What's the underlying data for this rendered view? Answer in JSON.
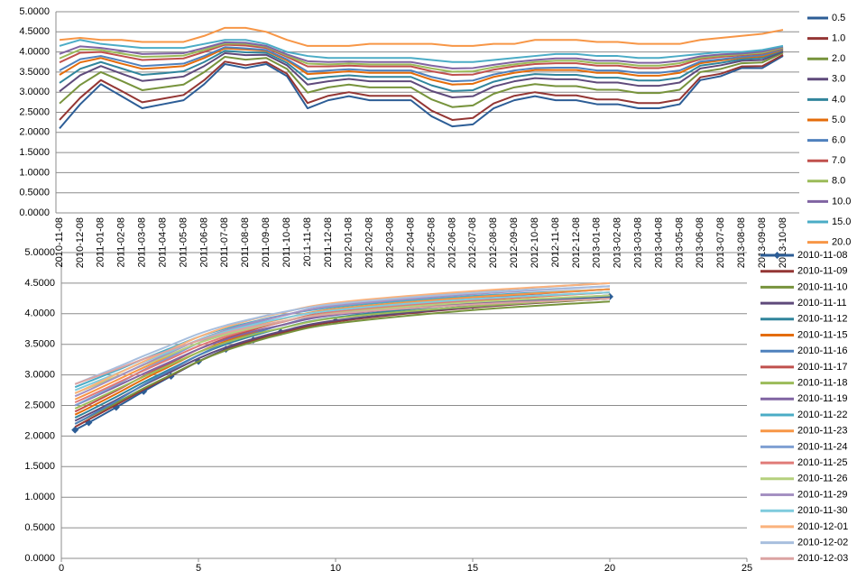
{
  "chart_data": [
    {
      "type": "line",
      "legend": "right",
      "grid": true,
      "categories": [
        "2010-11-08",
        "2010-12-08",
        "2011-01-08",
        "2011-02-08",
        "2011-03-08",
        "2011-04-08",
        "2011-05-08",
        "2011-06-08",
        "2011-07-08",
        "2011-08-08",
        "2011-09-08",
        "2011-10-08",
        "2011-11-08",
        "2011-12-08",
        "2012-01-08",
        "2012-02-08",
        "2012-03-08",
        "2012-04-08",
        "2012-05-08",
        "2012-06-08",
        "2012-07-08",
        "2012-08-08",
        "2012-09-08",
        "2012-10-08",
        "2012-11-08",
        "2012-12-08",
        "2013-01-08",
        "2013-02-08",
        "2013-03-08",
        "2013-04-08",
        "2013-05-08",
        "2013-06-08",
        "2013-07-08",
        "2013-08-08",
        "2013-09-08",
        "2013-10-08"
      ],
      "ylim": [
        0,
        5
      ],
      "yticks": [
        {
          "value": 0,
          "label": "0.0000"
        },
        {
          "value": 0.5,
          "label": "0.5000"
        },
        {
          "value": 1,
          "label": "1.0000"
        },
        {
          "value": 1.5,
          "label": "1.5000"
        },
        {
          "value": 2,
          "label": "2.0000"
        },
        {
          "value": 2.5,
          "label": "2.5000"
        },
        {
          "value": 3,
          "label": "3.0000"
        },
        {
          "value": 3.5,
          "label": "3.5000"
        },
        {
          "value": 4,
          "label": "4.0000"
        },
        {
          "value": 4.5,
          "label": "4.5000"
        },
        {
          "value": 5,
          "label": "5.0000"
        }
      ],
      "series": [
        {
          "name": "0.5",
          "color": "#2c5d96",
          "values": [
            2.1,
            2.7,
            3.2,
            2.9,
            2.6,
            2.7,
            2.8,
            3.2,
            3.7,
            3.6,
            3.7,
            3.4,
            2.6,
            2.8,
            2.9,
            2.8,
            2.8,
            2.8,
            2.4,
            2.15,
            2.2,
            2.6,
            2.8,
            2.9,
            2.8,
            2.8,
            2.7,
            2.7,
            2.6,
            2.6,
            2.7,
            3.3,
            3.4,
            3.6,
            3.6,
            3.9
          ]
        },
        {
          "name": "1.0",
          "color": "#943634",
          "values": [
            2.31,
            2.86,
            3.3,
            3.03,
            2.75,
            2.84,
            2.93,
            3.3,
            3.76,
            3.67,
            3.75,
            3.46,
            2.73,
            2.91,
            3.0,
            2.91,
            2.91,
            2.91,
            2.54,
            2.31,
            2.36,
            2.72,
            2.91,
            3.0,
            2.92,
            2.92,
            2.82,
            2.82,
            2.73,
            2.73,
            2.82,
            3.37,
            3.46,
            3.64,
            3.65,
            3.93
          ]
        },
        {
          "name": "2.0",
          "color": "#77933c",
          "values": [
            2.72,
            3.18,
            3.5,
            3.28,
            3.05,
            3.12,
            3.19,
            3.5,
            3.88,
            3.81,
            3.85,
            3.58,
            2.99,
            3.12,
            3.19,
            3.12,
            3.12,
            3.12,
            2.82,
            2.63,
            2.67,
            2.96,
            3.12,
            3.2,
            3.15,
            3.15,
            3.06,
            3.06,
            2.98,
            2.98,
            3.06,
            3.5,
            3.58,
            3.72,
            3.74,
            3.98
          ]
        },
        {
          "name": "3.0",
          "color": "#5f4a7b",
          "values": [
            3.02,
            3.42,
            3.65,
            3.46,
            3.28,
            3.33,
            3.39,
            3.65,
            3.97,
            3.92,
            3.93,
            3.67,
            3.19,
            3.27,
            3.33,
            3.27,
            3.27,
            3.27,
            3.03,
            2.87,
            2.9,
            3.14,
            3.27,
            3.35,
            3.32,
            3.32,
            3.24,
            3.24,
            3.16,
            3.16,
            3.24,
            3.59,
            3.67,
            3.78,
            3.8,
            4.01
          ]
        },
        {
          "name": "4.0",
          "color": "#31859c",
          "values": [
            3.23,
            3.58,
            3.75,
            3.59,
            3.43,
            3.47,
            3.52,
            3.75,
            4.03,
            3.99,
            3.98,
            3.73,
            3.32,
            3.38,
            3.42,
            3.38,
            3.38,
            3.38,
            3.17,
            3.03,
            3.05,
            3.26,
            3.38,
            3.45,
            3.43,
            3.43,
            3.36,
            3.36,
            3.29,
            3.29,
            3.36,
            3.66,
            3.73,
            3.82,
            3.85,
            4.04
          ]
        },
        {
          "name": "5.0",
          "color": "#e46c0a",
          "values": [
            3.43,
            3.74,
            3.85,
            3.71,
            3.58,
            3.61,
            3.65,
            3.85,
            4.09,
            4.06,
            4.03,
            3.79,
            3.45,
            3.48,
            3.52,
            3.48,
            3.48,
            3.48,
            3.31,
            3.19,
            3.21,
            3.38,
            3.48,
            3.55,
            3.55,
            3.55,
            3.48,
            3.48,
            3.41,
            3.41,
            3.48,
            3.72,
            3.79,
            3.86,
            3.89,
            4.06
          ]
        },
        {
          "name": "6.0",
          "color": "#4f81bd",
          "values": [
            3.54,
            3.82,
            3.9,
            3.78,
            3.65,
            3.68,
            3.71,
            3.9,
            4.12,
            4.09,
            4.05,
            3.82,
            3.51,
            3.54,
            3.57,
            3.54,
            3.54,
            3.54,
            3.38,
            3.27,
            3.29,
            3.44,
            3.54,
            3.6,
            3.61,
            3.61,
            3.54,
            3.54,
            3.48,
            3.48,
            3.54,
            3.76,
            3.82,
            3.88,
            3.92,
            4.08
          ]
        },
        {
          "name": "7.0",
          "color": "#c0504d",
          "values": [
            3.74,
            3.98,
            4.0,
            3.9,
            3.8,
            3.82,
            3.84,
            4.0,
            4.18,
            4.16,
            4.1,
            3.88,
            3.64,
            3.64,
            3.66,
            3.64,
            3.64,
            3.64,
            3.52,
            3.43,
            3.44,
            3.56,
            3.64,
            3.7,
            3.72,
            3.72,
            3.66,
            3.66,
            3.6,
            3.6,
            3.66,
            3.82,
            3.88,
            3.92,
            3.96,
            4.1
          ]
        },
        {
          "name": "8.0",
          "color": "#9bbb59",
          "values": [
            3.84,
            4.06,
            4.05,
            3.96,
            3.88,
            3.89,
            3.91,
            4.05,
            4.21,
            4.2,
            4.13,
            3.91,
            3.71,
            3.69,
            3.71,
            3.69,
            3.69,
            3.69,
            3.59,
            3.51,
            3.52,
            3.62,
            3.69,
            3.75,
            3.78,
            3.78,
            3.72,
            3.72,
            3.66,
            3.66,
            3.72,
            3.85,
            3.91,
            3.94,
            3.98,
            4.11
          ]
        },
        {
          "name": "10.0",
          "color": "#8064a2",
          "values": [
            3.95,
            4.14,
            4.1,
            4.03,
            3.95,
            3.96,
            3.97,
            4.1,
            4.24,
            4.23,
            4.15,
            3.94,
            3.77,
            3.75,
            3.76,
            3.75,
            3.75,
            3.75,
            3.66,
            3.59,
            3.6,
            3.68,
            3.75,
            3.8,
            3.84,
            3.84,
            3.78,
            3.78,
            3.73,
            3.73,
            3.78,
            3.89,
            3.94,
            3.96,
            4.01,
            4.13
          ]
        },
        {
          "name": "15.0",
          "color": "#4bacc6",
          "values": [
            4.15,
            4.3,
            4.2,
            4.15,
            4.1,
            4.1,
            4.1,
            4.2,
            4.3,
            4.3,
            4.2,
            4.0,
            3.9,
            3.85,
            3.85,
            3.85,
            3.85,
            3.85,
            3.8,
            3.75,
            3.75,
            3.8,
            3.85,
            3.9,
            3.95,
            3.95,
            3.9,
            3.9,
            3.85,
            3.85,
            3.9,
            3.95,
            4.0,
            4.0,
            4.05,
            4.15
          ]
        },
        {
          "name": "20.0",
          "color": "#f79646",
          "values": [
            4.3,
            4.35,
            4.3,
            4.3,
            4.25,
            4.25,
            4.25,
            4.4,
            4.6,
            4.6,
            4.5,
            4.3,
            4.15,
            4.15,
            4.15,
            4.2,
            4.2,
            4.2,
            4.2,
            4.15,
            4.15,
            4.2,
            4.2,
            4.3,
            4.3,
            4.3,
            4.25,
            4.25,
            4.2,
            4.2,
            4.2,
            4.3,
            4.35,
            4.4,
            4.45,
            4.55
          ]
        }
      ]
    },
    {
      "type": "line",
      "legend": "right",
      "grid": true,
      "smooth": true,
      "x": [
        0.5,
        1,
        2,
        3,
        4,
        5,
        6,
        7,
        8,
        10,
        15,
        20
      ],
      "xlim": [
        0,
        25
      ],
      "xticks": [
        0,
        5,
        10,
        15,
        20,
        25
      ],
      "ylim": [
        0,
        5
      ],
      "yticks": [
        {
          "value": 0,
          "label": "0.0000"
        },
        {
          "value": 0.5,
          "label": "0.5000"
        },
        {
          "value": 1,
          "label": "1.0000"
        },
        {
          "value": 1.5,
          "label": "1.5000"
        },
        {
          "value": 2,
          "label": "2.0000"
        },
        {
          "value": 2.5,
          "label": "2.5000"
        },
        {
          "value": 3,
          "label": "3.0000"
        },
        {
          "value": 3.5,
          "label": "3.5000"
        },
        {
          "value": 4,
          "label": "4.0000"
        },
        {
          "value": 4.5,
          "label": "4.5000"
        },
        {
          "value": 5,
          "label": "5.0000"
        }
      ],
      "series": [
        {
          "name": "2010-11-08",
          "color": "#2c5d96",
          "marker": "diamond",
          "values": [
            2.1,
            2.22,
            2.47,
            2.73,
            2.98,
            3.22,
            3.42,
            3.57,
            3.7,
            3.88,
            4.13,
            4.28
          ]
        },
        {
          "name": "2010-11-09",
          "color": "#943634",
          "values": [
            2.15,
            2.27,
            2.51,
            2.76,
            2.99,
            3.22,
            3.41,
            3.56,
            3.68,
            3.87,
            4.1,
            4.25
          ]
        },
        {
          "name": "2010-11-10",
          "color": "#77933c",
          "values": [
            2.2,
            2.31,
            2.54,
            2.78,
            3.0,
            3.22,
            3.4,
            3.54,
            3.66,
            3.84,
            4.06,
            4.2
          ]
        },
        {
          "name": "2010-11-11",
          "color": "#5f4a7b",
          "values": [
            2.25,
            2.36,
            2.59,
            2.83,
            3.05,
            3.27,
            3.45,
            3.59,
            3.71,
            3.89,
            4.11,
            4.25
          ]
        },
        {
          "name": "2010-11-12",
          "color": "#31859c",
          "values": [
            2.3,
            2.41,
            2.64,
            2.88,
            3.1,
            3.32,
            3.5,
            3.64,
            3.76,
            3.94,
            4.16,
            4.3
          ]
        },
        {
          "name": "2010-11-15",
          "color": "#e46c0a",
          "values": [
            2.35,
            2.46,
            2.69,
            2.93,
            3.15,
            3.37,
            3.55,
            3.69,
            3.81,
            3.99,
            4.21,
            4.35
          ]
        },
        {
          "name": "2010-11-16",
          "color": "#4f81bd",
          "values": [
            2.2,
            2.32,
            2.57,
            2.84,
            3.08,
            3.32,
            3.52,
            3.67,
            3.81,
            4.0,
            4.25,
            4.4
          ]
        },
        {
          "name": "2010-11-17",
          "color": "#c0504d",
          "values": [
            2.4,
            2.51,
            2.74,
            2.98,
            3.2,
            3.42,
            3.6,
            3.74,
            3.86,
            4.04,
            4.26,
            4.4
          ]
        },
        {
          "name": "2010-11-18",
          "color": "#9bbb59",
          "values": [
            2.45,
            2.55,
            2.76,
            2.97,
            3.17,
            3.37,
            3.53,
            3.66,
            3.76,
            3.93,
            4.12,
            4.25
          ]
        },
        {
          "name": "2010-11-19",
          "color": "#8064a2",
          "values": [
            2.5,
            2.6,
            2.81,
            3.02,
            3.22,
            3.42,
            3.58,
            3.71,
            3.81,
            3.98,
            4.17,
            4.3
          ]
        },
        {
          "name": "2010-11-22",
          "color": "#4bacc6",
          "values": [
            2.8,
            2.89,
            3.07,
            3.26,
            3.44,
            3.62,
            3.76,
            3.87,
            3.97,
            4.11,
            4.29,
            4.4
          ]
        },
        {
          "name": "2010-11-23",
          "color": "#f79646",
          "values": [
            2.6,
            2.7,
            2.91,
            3.12,
            3.32,
            3.52,
            3.68,
            3.81,
            3.91,
            4.08,
            4.27,
            4.4
          ]
        },
        {
          "name": "2010-11-24",
          "color": "#7f9fd3",
          "values": [
            2.5,
            2.61,
            2.84,
            3.08,
            3.3,
            3.52,
            3.7,
            3.84,
            3.96,
            4.14,
            4.36,
            4.5
          ]
        },
        {
          "name": "2010-11-25",
          "color": "#e07b78",
          "values": [
            2.55,
            2.65,
            2.86,
            3.07,
            3.27,
            3.47,
            3.63,
            3.76,
            3.86,
            4.03,
            4.22,
            4.35
          ]
        },
        {
          "name": "2010-11-26",
          "color": "#b5d07d",
          "values": [
            2.7,
            2.79,
            2.97,
            3.16,
            3.34,
            3.52,
            3.66,
            3.77,
            3.87,
            4.01,
            4.19,
            4.3
          ]
        },
        {
          "name": "2010-11-29",
          "color": "#a591c2",
          "values": [
            2.65,
            2.75,
            2.96,
            3.17,
            3.37,
            3.57,
            3.73,
            3.86,
            3.96,
            4.13,
            4.32,
            4.45
          ]
        },
        {
          "name": "2010-11-30",
          "color": "#7ecbdd",
          "values": [
            2.75,
            2.84,
            3.02,
            3.21,
            3.39,
            3.57,
            3.71,
            3.82,
            3.92,
            4.06,
            4.24,
            4.35
          ]
        },
        {
          "name": "2010-12-01",
          "color": "#fab27c",
          "values": [
            2.7,
            2.8,
            3.01,
            3.22,
            3.42,
            3.62,
            3.78,
            3.91,
            4.01,
            4.18,
            4.37,
            4.5
          ]
        },
        {
          "name": "2010-12-02",
          "color": "#a8bfde",
          "values": [
            2.85,
            2.94,
            3.12,
            3.31,
            3.49,
            3.67,
            3.81,
            3.92,
            4.02,
            4.16,
            4.34,
            4.45
          ]
        },
        {
          "name": "2010-12-03",
          "color": "#dba3a2",
          "values": [
            2.85,
            2.93,
            3.09,
            3.26,
            3.41,
            3.56,
            3.69,
            3.79,
            3.87,
            4.0,
            4.15,
            4.25
          ]
        }
      ]
    }
  ]
}
